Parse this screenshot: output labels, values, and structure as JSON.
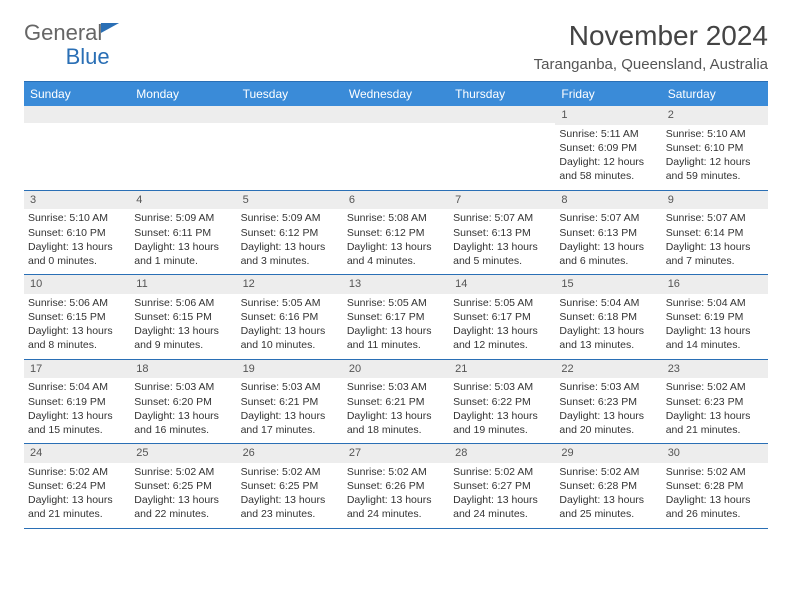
{
  "logo": {
    "text_general": "General",
    "text_blue": "Blue"
  },
  "header": {
    "month_title": "November 2024",
    "location": "Taranganba, Queensland, Australia"
  },
  "colors": {
    "dow_bg": "#3a8bd8",
    "rule": "#2a6fb5",
    "daynum_bg": "#ededed",
    "text": "#333333",
    "bg": "#ffffff"
  },
  "fonts": {
    "month_title_pt": 28,
    "location_pt": 15,
    "dow_pt": 12,
    "daynum_pt": 11,
    "body_pt": 10.5
  },
  "days_of_week": [
    "Sunday",
    "Monday",
    "Tuesday",
    "Wednesday",
    "Thursday",
    "Friday",
    "Saturday"
  ],
  "weeks": [
    [
      {
        "n": "",
        "l": [
          "",
          "",
          "",
          ""
        ]
      },
      {
        "n": "",
        "l": [
          "",
          "",
          "",
          ""
        ]
      },
      {
        "n": "",
        "l": [
          "",
          "",
          "",
          ""
        ]
      },
      {
        "n": "",
        "l": [
          "",
          "",
          "",
          ""
        ]
      },
      {
        "n": "",
        "l": [
          "",
          "",
          "",
          ""
        ]
      },
      {
        "n": "1",
        "l": [
          "Sunrise: 5:11 AM",
          "Sunset: 6:09 PM",
          "Daylight: 12 hours",
          "and 58 minutes."
        ]
      },
      {
        "n": "2",
        "l": [
          "Sunrise: 5:10 AM",
          "Sunset: 6:10 PM",
          "Daylight: 12 hours",
          "and 59 minutes."
        ]
      }
    ],
    [
      {
        "n": "3",
        "l": [
          "Sunrise: 5:10 AM",
          "Sunset: 6:10 PM",
          "Daylight: 13 hours",
          "and 0 minutes."
        ]
      },
      {
        "n": "4",
        "l": [
          "Sunrise: 5:09 AM",
          "Sunset: 6:11 PM",
          "Daylight: 13 hours",
          "and 1 minute."
        ]
      },
      {
        "n": "5",
        "l": [
          "Sunrise: 5:09 AM",
          "Sunset: 6:12 PM",
          "Daylight: 13 hours",
          "and 3 minutes."
        ]
      },
      {
        "n": "6",
        "l": [
          "Sunrise: 5:08 AM",
          "Sunset: 6:12 PM",
          "Daylight: 13 hours",
          "and 4 minutes."
        ]
      },
      {
        "n": "7",
        "l": [
          "Sunrise: 5:07 AM",
          "Sunset: 6:13 PM",
          "Daylight: 13 hours",
          "and 5 minutes."
        ]
      },
      {
        "n": "8",
        "l": [
          "Sunrise: 5:07 AM",
          "Sunset: 6:13 PM",
          "Daylight: 13 hours",
          "and 6 minutes."
        ]
      },
      {
        "n": "9",
        "l": [
          "Sunrise: 5:07 AM",
          "Sunset: 6:14 PM",
          "Daylight: 13 hours",
          "and 7 minutes."
        ]
      }
    ],
    [
      {
        "n": "10",
        "l": [
          "Sunrise: 5:06 AM",
          "Sunset: 6:15 PM",
          "Daylight: 13 hours",
          "and 8 minutes."
        ]
      },
      {
        "n": "11",
        "l": [
          "Sunrise: 5:06 AM",
          "Sunset: 6:15 PM",
          "Daylight: 13 hours",
          "and 9 minutes."
        ]
      },
      {
        "n": "12",
        "l": [
          "Sunrise: 5:05 AM",
          "Sunset: 6:16 PM",
          "Daylight: 13 hours",
          "and 10 minutes."
        ]
      },
      {
        "n": "13",
        "l": [
          "Sunrise: 5:05 AM",
          "Sunset: 6:17 PM",
          "Daylight: 13 hours",
          "and 11 minutes."
        ]
      },
      {
        "n": "14",
        "l": [
          "Sunrise: 5:05 AM",
          "Sunset: 6:17 PM",
          "Daylight: 13 hours",
          "and 12 minutes."
        ]
      },
      {
        "n": "15",
        "l": [
          "Sunrise: 5:04 AM",
          "Sunset: 6:18 PM",
          "Daylight: 13 hours",
          "and 13 minutes."
        ]
      },
      {
        "n": "16",
        "l": [
          "Sunrise: 5:04 AM",
          "Sunset: 6:19 PM",
          "Daylight: 13 hours",
          "and 14 minutes."
        ]
      }
    ],
    [
      {
        "n": "17",
        "l": [
          "Sunrise: 5:04 AM",
          "Sunset: 6:19 PM",
          "Daylight: 13 hours",
          "and 15 minutes."
        ]
      },
      {
        "n": "18",
        "l": [
          "Sunrise: 5:03 AM",
          "Sunset: 6:20 PM",
          "Daylight: 13 hours",
          "and 16 minutes."
        ]
      },
      {
        "n": "19",
        "l": [
          "Sunrise: 5:03 AM",
          "Sunset: 6:21 PM",
          "Daylight: 13 hours",
          "and 17 minutes."
        ]
      },
      {
        "n": "20",
        "l": [
          "Sunrise: 5:03 AM",
          "Sunset: 6:21 PM",
          "Daylight: 13 hours",
          "and 18 minutes."
        ]
      },
      {
        "n": "21",
        "l": [
          "Sunrise: 5:03 AM",
          "Sunset: 6:22 PM",
          "Daylight: 13 hours",
          "and 19 minutes."
        ]
      },
      {
        "n": "22",
        "l": [
          "Sunrise: 5:03 AM",
          "Sunset: 6:23 PM",
          "Daylight: 13 hours",
          "and 20 minutes."
        ]
      },
      {
        "n": "23",
        "l": [
          "Sunrise: 5:02 AM",
          "Sunset: 6:23 PM",
          "Daylight: 13 hours",
          "and 21 minutes."
        ]
      }
    ],
    [
      {
        "n": "24",
        "l": [
          "Sunrise: 5:02 AM",
          "Sunset: 6:24 PM",
          "Daylight: 13 hours",
          "and 21 minutes."
        ]
      },
      {
        "n": "25",
        "l": [
          "Sunrise: 5:02 AM",
          "Sunset: 6:25 PM",
          "Daylight: 13 hours",
          "and 22 minutes."
        ]
      },
      {
        "n": "26",
        "l": [
          "Sunrise: 5:02 AM",
          "Sunset: 6:25 PM",
          "Daylight: 13 hours",
          "and 23 minutes."
        ]
      },
      {
        "n": "27",
        "l": [
          "Sunrise: 5:02 AM",
          "Sunset: 6:26 PM",
          "Daylight: 13 hours",
          "and 24 minutes."
        ]
      },
      {
        "n": "28",
        "l": [
          "Sunrise: 5:02 AM",
          "Sunset: 6:27 PM",
          "Daylight: 13 hours",
          "and 24 minutes."
        ]
      },
      {
        "n": "29",
        "l": [
          "Sunrise: 5:02 AM",
          "Sunset: 6:28 PM",
          "Daylight: 13 hours",
          "and 25 minutes."
        ]
      },
      {
        "n": "30",
        "l": [
          "Sunrise: 5:02 AM",
          "Sunset: 6:28 PM",
          "Daylight: 13 hours",
          "and 26 minutes."
        ]
      }
    ]
  ]
}
